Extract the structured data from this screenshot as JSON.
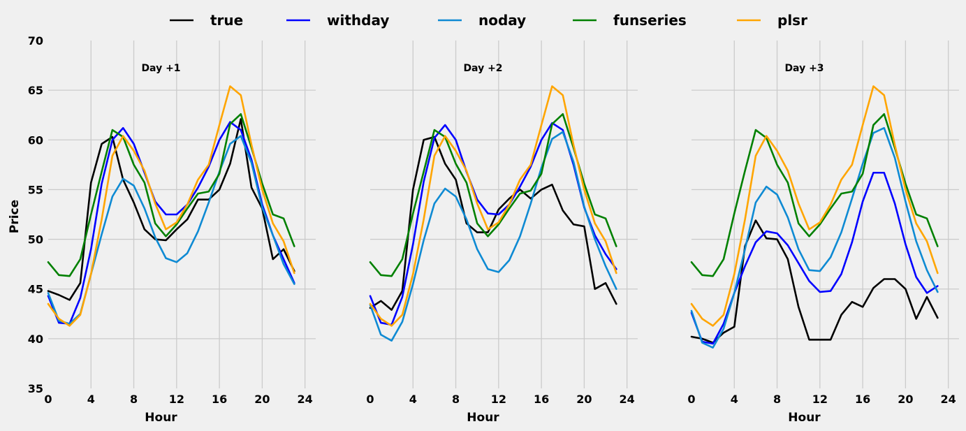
{
  "chart_data": {
    "type": "line",
    "ylabel": "Price",
    "ylim": [
      35,
      70
    ],
    "yticks": [
      35,
      40,
      45,
      50,
      55,
      60,
      65,
      70
    ],
    "xlim": [
      0,
      25
    ],
    "xticks": [
      0,
      4,
      8,
      12,
      16,
      20,
      24
    ],
    "grid": true,
    "legend_placement": "top-center",
    "x": [
      0,
      1,
      2,
      3,
      4,
      5,
      6,
      7,
      8,
      9,
      10,
      11,
      12,
      13,
      14,
      15,
      16,
      17,
      18,
      19,
      20,
      21,
      22,
      23
    ],
    "legend": [
      {
        "name": "true",
        "color": "#000000"
      },
      {
        "name": "withday",
        "color": "#0000ff"
      },
      {
        "name": "noday",
        "color": "#0e8ad3"
      },
      {
        "name": "funseries",
        "color": "#008000"
      },
      {
        "name": "plsr",
        "color": "#ffa500"
      }
    ],
    "panels": [
      {
        "title": "Day +1",
        "xlabel": "Hour",
        "series": [
          {
            "name": "true",
            "color": "#000000",
            "values": [
              44.8,
              44.4,
              43.9,
              45.6,
              55.7,
              59.6,
              60.3,
              56.0,
              53.7,
              51.0,
              50.0,
              49.9,
              51.0,
              52.0,
              54.0,
              54.0,
              55.0,
              57.6,
              62.1,
              55.2,
              53.1,
              48.0,
              49.0,
              46.8
            ]
          },
          {
            "name": "withday",
            "color": "#0000ff",
            "values": [
              44.3,
              41.6,
              41.5,
              44.1,
              49.0,
              55.6,
              60.0,
              61.2,
              59.6,
              56.7,
              53.8,
              52.5,
              52.5,
              53.5,
              55.2,
              57.3,
              60.0,
              61.8,
              61.0,
              58.0,
              53.5,
              50.4,
              48.0,
              45.6
            ]
          },
          {
            "name": "noday",
            "color": "#0e8ad3",
            "values": [
              44.6,
              41.8,
              41.5,
              42.5,
              46.5,
              50.5,
              54.3,
              56.1,
              55.4,
              53.1,
              50.2,
              48.1,
              47.7,
              48.6,
              50.8,
              53.7,
              56.8,
              59.6,
              60.4,
              57.7,
              53.2,
              50.4,
              47.5,
              45.5
            ]
          },
          {
            "name": "funseries",
            "color": "#008000",
            "values": [
              47.7,
              46.4,
              46.3,
              48.0,
              52.5,
              56.8,
              61.0,
              60.3,
              57.5,
              55.7,
              51.6,
              50.3,
              51.5,
              53.1,
              54.6,
              54.8,
              56.6,
              61.6,
              62.6,
              59.2,
              55.6,
              52.5,
              52.1,
              49.3
            ]
          },
          {
            "name": "plsr",
            "color": "#ffa500",
            "values": [
              43.5,
              42.0,
              41.3,
              42.4,
              46.5,
              52.0,
              58.4,
              60.4,
              58.9,
              56.9,
              53.6,
              51.0,
              51.7,
              53.5,
              56.0,
              57.5,
              61.5,
              65.4,
              64.5,
              59.5,
              55.0,
              51.6,
              49.8,
              46.6
            ]
          }
        ]
      },
      {
        "title": "Day +2",
        "xlabel": "Hour",
        "series": [
          {
            "name": "true",
            "color": "#000000",
            "values": [
              43.1,
              43.8,
              42.9,
              44.8,
              55.0,
              60.0,
              60.3,
              57.6,
              56.0,
              51.6,
              50.7,
              50.7,
              53.0,
              54.1,
              55.0,
              54.1,
              55.0,
              55.5,
              52.9,
              51.5,
              51.3,
              45.0,
              45.6,
              43.5
            ]
          },
          {
            "name": "withday",
            "color": "#0000ff",
            "values": [
              44.3,
              41.6,
              41.4,
              44.2,
              49.5,
              55.8,
              60.2,
              61.5,
              60.0,
              56.8,
              54.0,
              52.6,
              52.5,
              53.5,
              55.3,
              57.3,
              60.0,
              61.7,
              61.0,
              57.5,
              53.2,
              50.4,
              48.5,
              47.0
            ]
          },
          {
            "name": "noday",
            "color": "#0e8ad3",
            "values": [
              43.4,
              40.4,
              39.8,
              41.7,
              45.5,
              49.9,
              53.6,
              55.1,
              54.3,
              52.0,
              49.0,
              47.0,
              46.7,
              47.9,
              50.3,
              53.6,
              57.2,
              60.1,
              60.8,
              57.8,
              53.3,
              50.0,
              47.3,
              45.0
            ]
          },
          {
            "name": "funseries",
            "color": "#008000",
            "values": [
              47.7,
              46.4,
              46.3,
              48.0,
              52.6,
              56.8,
              61.0,
              60.3,
              57.6,
              55.7,
              51.6,
              50.3,
              51.5,
              53.1,
              54.6,
              54.9,
              56.6,
              61.6,
              62.6,
              59.2,
              55.6,
              52.5,
              52.1,
              49.3
            ]
          },
          {
            "name": "plsr",
            "color": "#ffa500",
            "values": [
              43.5,
              42.0,
              41.3,
              42.4,
              46.5,
              52.0,
              58.4,
              60.4,
              58.9,
              56.9,
              53.6,
              51.0,
              51.7,
              53.5,
              56.0,
              57.5,
              61.5,
              65.4,
              64.5,
              59.5,
              55.0,
              51.6,
              49.8,
              46.6
            ]
          }
        ]
      },
      {
        "title": "Day +3",
        "xlabel": "Hour",
        "series": [
          {
            "name": "true",
            "color": "#000000",
            "values": [
              40.2,
              40.0,
              39.6,
              40.6,
              41.2,
              49.3,
              51.9,
              50.1,
              50.0,
              48.0,
              43.2,
              39.9,
              39.9,
              39.9,
              42.4,
              43.7,
              43.2,
              45.1,
              46.0,
              46.0,
              45.0,
              42.0,
              44.2,
              42.1
            ]
          },
          {
            "name": "withday",
            "color": "#0000ff",
            "values": [
              42.6,
              39.7,
              39.5,
              41.5,
              44.6,
              47.3,
              49.7,
              50.8,
              50.6,
              49.4,
              47.6,
              45.8,
              44.7,
              44.8,
              46.5,
              49.7,
              53.8,
              56.7,
              56.7,
              53.6,
              49.5,
              46.2,
              44.6,
              45.3
            ]
          },
          {
            "name": "noday",
            "color": "#0e8ad3",
            "values": [
              42.8,
              39.6,
              39.1,
              41.0,
              44.6,
              49.0,
              53.7,
              55.3,
              54.5,
              52.2,
              49.0,
              46.9,
              46.8,
              48.2,
              50.7,
              54.1,
              57.6,
              60.7,
              61.2,
              58.2,
              53.8,
              49.8,
              46.9,
              44.7
            ]
          },
          {
            "name": "funseries",
            "color": "#008000",
            "values": [
              47.7,
              46.4,
              46.3,
              48.0,
              52.6,
              56.9,
              61.0,
              60.2,
              57.5,
              55.7,
              51.6,
              50.3,
              51.5,
              53.1,
              54.6,
              54.8,
              56.6,
              61.5,
              62.6,
              59.2,
              55.6,
              52.5,
              52.1,
              49.3
            ]
          },
          {
            "name": "plsr",
            "color": "#ffa500",
            "values": [
              43.5,
              42.0,
              41.3,
              42.4,
              46.5,
              52.0,
              58.4,
              60.4,
              58.9,
              56.9,
              53.6,
              51.0,
              51.7,
              53.5,
              56.0,
              57.5,
              61.5,
              65.4,
              64.5,
              59.5,
              55.0,
              51.6,
              49.8,
              46.6
            ]
          }
        ]
      }
    ]
  }
}
